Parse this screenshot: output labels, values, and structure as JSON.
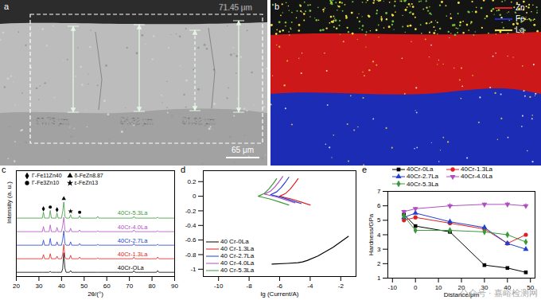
{
  "micrographs": [
    {
      "panel": "a",
      "measurements": [
        "60.79 μm",
        "54.32 μm",
        "50.92 μm",
        "71.45 μm"
      ],
      "scale_bar": "65 μm"
    },
    {
      "panel": "b",
      "legend": [
        {
          "name": "Zn",
          "color": "#e02020"
        },
        {
          "name": "Fe",
          "color": "#2030d0"
        },
        {
          "name": "La",
          "color": "#f0e040"
        }
      ]
    }
  ],
  "chart_data": [
    {
      "panel": "c",
      "type": "line",
      "xlabel": "2θ/(°)",
      "ylabel": "Intensity (a. u.)",
      "xlim": [
        20,
        90
      ],
      "xticks": [
        20,
        30,
        40,
        50,
        60,
        70,
        80,
        90
      ],
      "ylim": [
        0,
        125
      ],
      "tick_labels": "x",
      "x": [
        20,
        30,
        31.5,
        32,
        32.5,
        34.5,
        35,
        35.5,
        37.5,
        38,
        38.5,
        40,
        40.5,
        41,
        41.5,
        42,
        43.5,
        44,
        44.5,
        47.5,
        48,
        48.5,
        55.5,
        56,
        56.5,
        71.5,
        72,
        72.5,
        82,
        82.5,
        83,
        90
      ],
      "series": [
        {
          "name": "40Cr-OLa",
          "color": "#000000",
          "values": [
            5,
            5,
            5,
            5,
            5,
            5,
            6,
            5,
            5,
            5,
            5,
            5,
            9,
            28,
            10,
            5,
            5,
            7,
            5,
            5,
            5,
            5,
            5,
            5,
            5,
            5,
            7,
            5,
            5,
            7,
            5,
            5
          ]
        },
        {
          "name": "40Cr-1.3La",
          "color": "#e02020",
          "values": [
            21,
            21,
            21,
            26,
            21,
            21,
            27,
            21,
            21,
            24,
            21,
            21,
            26,
            38,
            23,
            21,
            21,
            25,
            21,
            21,
            23,
            21,
            21,
            22,
            21,
            21,
            23,
            21,
            21,
            23,
            21,
            21
          ]
        },
        {
          "name": "40Cr-2.7La",
          "color": "#2040d0",
          "values": [
            37,
            37,
            37,
            43,
            37,
            37,
            45,
            37,
            37,
            41,
            37,
            37,
            44,
            54,
            39,
            37,
            37,
            41,
            37,
            37,
            39,
            37,
            37,
            38,
            37,
            37,
            39,
            37,
            37,
            38,
            37,
            37
          ]
        },
        {
          "name": "40Cr-4.0La",
          "color": "#b050c0",
          "values": [
            53,
            53,
            53,
            59,
            53,
            53,
            61,
            53,
            53,
            58,
            53,
            53,
            60,
            70,
            55,
            53,
            53,
            57,
            53,
            53,
            55,
            53,
            53,
            54,
            53,
            53,
            55,
            53,
            53,
            54,
            53,
            53
          ]
        },
        {
          "name": "40Cr-5.3La",
          "color": "#3a9a3a",
          "values": [
            69,
            69,
            69,
            76,
            69,
            69,
            78,
            69,
            69,
            75,
            69,
            69,
            77,
            88,
            71,
            69,
            69,
            73,
            69,
            69,
            72,
            69,
            69,
            71,
            69,
            69,
            71,
            69,
            69,
            70,
            69,
            69
          ]
        }
      ],
      "phases": [
        {
          "name": "Γ-Fe11Zn40",
          "marker": "diamond",
          "x": [
            32,
            38
          ],
          "values": [
            80,
            79
          ]
        },
        {
          "name": "δ-FeZn8.87",
          "marker": "triangle",
          "x": [
            41
          ],
          "values": [
            92
          ]
        },
        {
          "name": "Γ-Fe3Zn10",
          "marker": "circle",
          "x": [
            35,
            48
          ],
          "values": [
            82,
            76
          ]
        },
        {
          "name": "ε-FeZn13",
          "marker": "star",
          "x": [
            44
          ],
          "values": [
            77
          ]
        }
      ]
    },
    {
      "panel": "d",
      "type": "line",
      "xlabel": "lg (Current/A)",
      "legend": "lower-left",
      "xlim": [
        -11,
        -1
      ],
      "xticks": [
        -10,
        -8,
        -6,
        -4,
        -2
      ],
      "ylim": [
        -1.1,
        0.35
      ],
      "yticks": [
        -1,
        -0.8,
        -0.6,
        -0.4,
        -0.2,
        0,
        0.2
      ],
      "series": [
        {
          "name": "40 Cr-0La",
          "color": "#000000",
          "x": [
            -6.5,
            -5.5,
            -4.8,
            -4.5,
            -4.2,
            -3.5,
            -2.5,
            -1.5
          ],
          "values": [
            -0.93,
            -0.92,
            -0.91,
            -0.9,
            -0.88,
            -0.82,
            -0.7,
            -0.55
          ]
        },
        {
          "name": "40 Cr-1.3La",
          "color": "#e02020",
          "x": [
            -4.0,
            -4.6,
            -5.2,
            -5.8,
            -6.0,
            -5.6,
            -5.3,
            -5.0,
            -4.8
          ],
          "values": [
            -0.12,
            -0.08,
            -0.04,
            -0.01,
            0.0,
            0.04,
            0.1,
            0.18,
            0.24
          ]
        },
        {
          "name": "40 Cr-2.7La",
          "color": "#2040d0",
          "x": [
            -4.6,
            -5.2,
            -5.8,
            -6.4,
            -6.6,
            -6.2,
            -5.9,
            -5.6,
            -5.4
          ],
          "values": [
            -0.1,
            -0.06,
            -0.02,
            0.01,
            0.02,
            0.06,
            0.12,
            0.2,
            0.26
          ]
        },
        {
          "name": "40 Cr-4.0La",
          "color": "#b050c0",
          "x": [
            -5.0,
            -5.6,
            -6.2,
            -6.8,
            -7.0,
            -6.6,
            -6.3,
            -6.0,
            -5.8
          ],
          "values": [
            -0.09,
            -0.05,
            -0.01,
            0.02,
            0.03,
            0.07,
            0.13,
            0.21,
            0.27
          ]
        },
        {
          "name": "40 Cr-5.3La",
          "color": "#3a9a3a",
          "x": [
            -5.4,
            -6.0,
            -6.6,
            -7.2,
            -7.4,
            -7.0,
            -6.7,
            -6.4,
            -6.2
          ],
          "values": [
            -0.12,
            -0.08,
            -0.04,
            -0.01,
            0.0,
            0.04,
            0.1,
            0.18,
            0.24
          ]
        }
      ]
    },
    {
      "panel": "e",
      "type": "line",
      "xlabel": "Distance/μm",
      "ylabel": "Hardness/GPa",
      "legend": "top",
      "xlim": [
        -12,
        52
      ],
      "xticks": [
        -10,
        0,
        10,
        20,
        30,
        40,
        50
      ],
      "ylim": [
        1,
        7
      ],
      "yticks": [
        1,
        2,
        3,
        4,
        5,
        6,
        7
      ],
      "x": [
        -5,
        0,
        15,
        30,
        40,
        48
      ],
      "series": [
        {
          "name": "40Cr-0La",
          "color": "#000000",
          "marker": "square",
          "values": [
            5.4,
            4.6,
            4.2,
            1.9,
            1.7,
            1.4
          ]
        },
        {
          "name": "40Cr-1.3La",
          "color": "#e02020",
          "marker": "circle",
          "values": [
            5.0,
            5.2,
            4.8,
            4.4,
            3.4,
            4.0
          ]
        },
        {
          "name": "40Cr-2.7La",
          "color": "#2040d0",
          "marker": "triangle",
          "values": [
            5.2,
            5.5,
            4.9,
            4.5,
            3.4,
            3.0
          ]
        },
        {
          "name": "40Cr-4.0La",
          "color": "#b050c0",
          "marker": "triangle-down",
          "values": [
            5.6,
            5.8,
            6.0,
            6.1,
            6.1,
            6.0
          ],
          "errors": [
            0.1,
            0.1,
            0.15,
            0.1,
            0.15,
            0.15
          ]
        },
        {
          "name": "40Cr-5.3La",
          "color": "#3a9a3a",
          "marker": "diamond",
          "values": [
            5.3,
            4.3,
            4.3,
            4.2,
            4.0,
            3.5
          ]
        }
      ]
    }
  ],
  "watermark": "公众号 · 嘉峪检测网"
}
